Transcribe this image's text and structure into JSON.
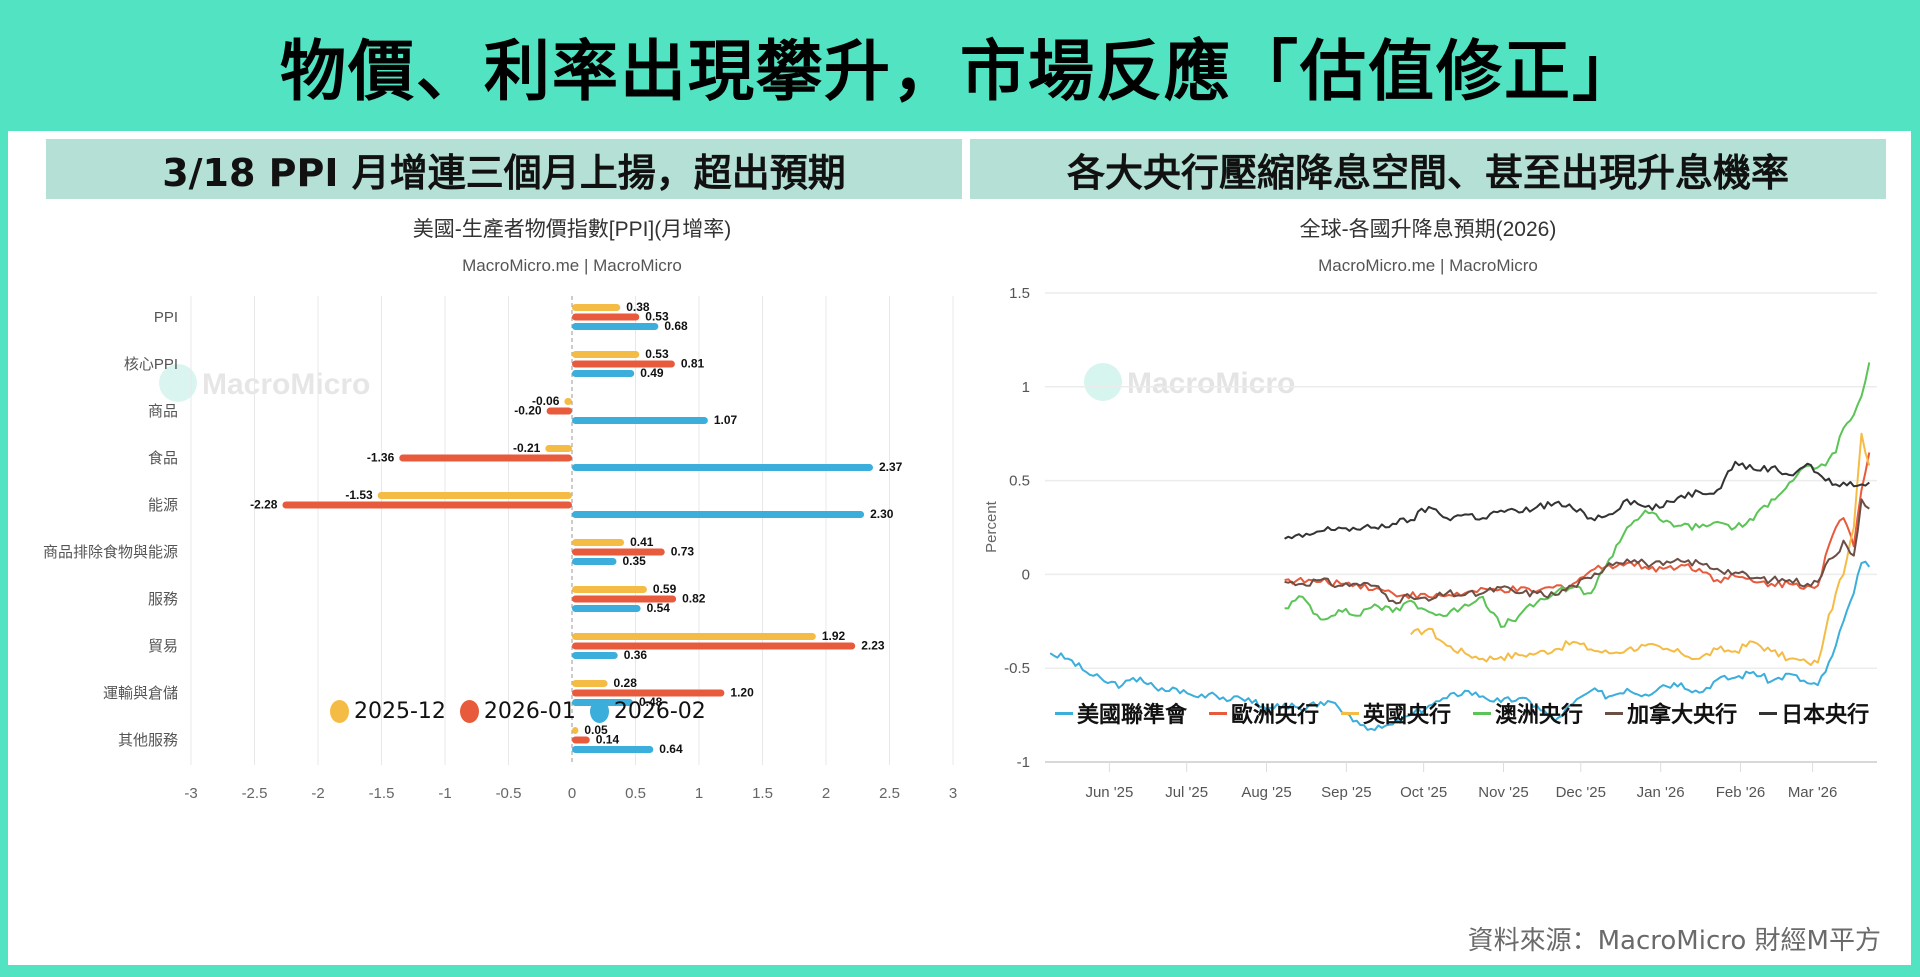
{
  "headline": "物價、利率出現攀升，市場反應「估值修正」",
  "source": "資料來源：MacroMicro 財經M平方",
  "left_panel": {
    "band_title": "3/18 PPI 月增連三個月上揚，超出預期"
  },
  "right_panel": {
    "band_title": "各大央行壓縮降息空間、甚至出現升息機率"
  },
  "watermark": "MacroMicro",
  "colors": {
    "teal": "#52E3C2",
    "band": "#B5E0D5"
  },
  "chart_data": [
    {
      "type": "bar",
      "orientation": "horizontal",
      "title": "美國-生產者物價指數[PPI](月增率)",
      "subtitle": "MacroMicro.me | MacroMicro",
      "categories": [
        "PPI",
        "核心PPI",
        "商品",
        "食品",
        "能源",
        "商品排除食物與能源",
        "服務",
        "貿易",
        "運輸與倉儲",
        "其他服務"
      ],
      "series": [
        {
          "name": "2025-12",
          "color": "#F5BC45",
          "values": [
            0.38,
            0.53,
            -0.06,
            -0.21,
            -1.53,
            0.41,
            0.59,
            1.92,
            0.28,
            0.05
          ]
        },
        {
          "name": "2026-01",
          "color": "#E85A3C",
          "values": [
            0.53,
            0.81,
            -0.2,
            -1.36,
            -2.28,
            0.73,
            0.82,
            2.23,
            1.2,
            0.14
          ]
        },
        {
          "name": "2026-02",
          "color": "#3BAEDB",
          "values": [
            0.68,
            0.49,
            1.07,
            2.37,
            2.3,
            0.35,
            0.54,
            0.36,
            0.48,
            0.64
          ]
        }
      ],
      "xlim": [
        -3,
        3
      ],
      "xticks": [
        "-3",
        "-2.5",
        "-2",
        "-1.5",
        "-1",
        "-0.5",
        "0",
        "0.5",
        "1",
        "1.5",
        "2",
        "2.5",
        "3"
      ],
      "xtick_values": [
        -3,
        -2.5,
        -2,
        -1.5,
        -1,
        -0.5,
        0,
        0.5,
        1,
        1.5,
        2,
        2.5,
        3
      ],
      "grid": true,
      "legend": "bottom"
    },
    {
      "type": "line",
      "title": "全球-各國升降息預期(2026)",
      "subtitle": "MacroMicro.me | MacroMicro",
      "ylabel": "Percent",
      "ylim": [
        -1,
        1.5
      ],
      "yticks": [
        "1.5",
        "1",
        "0.5",
        "0",
        "-0.5",
        "-1"
      ],
      "ytick_values": [
        1.5,
        1,
        0.5,
        0,
        -0.5,
        -1
      ],
      "xticks": [
        "Jun '25",
        "Jul '25",
        "Aug '25",
        "Sep '25",
        "Oct '25",
        "Nov '25",
        "Dec '25",
        "Jan '26",
        "Feb '26",
        "Mar '26"
      ],
      "xtick_dates": [
        "2025-06-01",
        "2025-07-01",
        "2025-08-01",
        "2025-09-01",
        "2025-10-01",
        "2025-11-01",
        "2025-12-01",
        "2026-01-01",
        "2026-02-01",
        "2026-03-01"
      ],
      "xlim": [
        "2025-05-07",
        "2026-03-26"
      ],
      "grid": true,
      "legend": "bottom",
      "series": [
        {
          "name": "美國聯準會",
          "color": "#3BAEDB",
          "x": [
            "2025-05-09",
            "2025-05-16",
            "2025-05-23",
            "2025-05-30",
            "2025-06-06",
            "2025-06-13",
            "2025-06-20",
            "2025-06-27",
            "2025-07-04",
            "2025-07-11",
            "2025-07-18",
            "2025-07-25",
            "2025-08-01",
            "2025-08-08",
            "2025-08-15",
            "2025-08-22",
            "2025-08-29",
            "2025-09-05",
            "2025-09-12",
            "2025-09-19",
            "2025-09-26",
            "2025-10-03",
            "2025-10-10",
            "2025-10-17",
            "2025-10-24",
            "2025-10-31",
            "2025-11-07",
            "2025-11-14",
            "2025-11-21",
            "2025-11-28",
            "2025-12-05",
            "2025-12-12",
            "2025-12-19",
            "2025-12-26",
            "2026-01-02",
            "2026-01-09",
            "2026-01-16",
            "2026-01-23",
            "2026-01-30",
            "2026-02-06",
            "2026-02-13",
            "2026-02-20",
            "2026-02-27",
            "2026-03-03",
            "2026-03-06",
            "2026-03-10",
            "2026-03-13",
            "2026-03-17",
            "2026-03-20",
            "2026-03-23"
          ],
          "y": [
            -0.42,
            -0.45,
            -0.52,
            -0.57,
            -0.59,
            -0.55,
            -0.62,
            -0.61,
            -0.65,
            -0.63,
            -0.67,
            -0.66,
            -0.72,
            -0.69,
            -0.73,
            -0.68,
            -0.71,
            -0.78,
            -0.83,
            -0.8,
            -0.75,
            -0.7,
            -0.66,
            -0.62,
            -0.65,
            -0.68,
            -0.66,
            -0.7,
            -0.78,
            -0.69,
            -0.62,
            -0.65,
            -0.61,
            -0.64,
            -0.59,
            -0.58,
            -0.63,
            -0.56,
            -0.55,
            -0.52,
            -0.57,
            -0.53,
            -0.58,
            -0.59,
            -0.52,
            -0.38,
            -0.25,
            -0.1,
            0.06,
            0.04
          ]
        },
        {
          "name": "歐洲央行",
          "color": "#E85A3C",
          "x": [
            "2025-08-08",
            "2025-08-22",
            "2025-09-05",
            "2025-09-19",
            "2025-10-03",
            "2025-10-17",
            "2025-10-31",
            "2025-11-14",
            "2025-11-28",
            "2025-12-05",
            "2025-12-12",
            "2025-12-19",
            "2025-12-26",
            "2026-01-02",
            "2026-01-09",
            "2026-01-16",
            "2026-01-23",
            "2026-01-30",
            "2026-02-06",
            "2026-02-13",
            "2026-02-20",
            "2026-02-27",
            "2026-03-03",
            "2026-03-06",
            "2026-03-10",
            "2026-03-13",
            "2026-03-17",
            "2026-03-20",
            "2026-03-23"
          ],
          "y": [
            -0.03,
            -0.04,
            -0.05,
            -0.1,
            -0.12,
            -0.1,
            -0.08,
            -0.09,
            -0.05,
            0.02,
            0.05,
            0.06,
            0.04,
            0.03,
            0.05,
            0.03,
            -0.03,
            -0.01,
            -0.04,
            -0.05,
            -0.05,
            -0.06,
            -0.06,
            0.1,
            0.25,
            0.3,
            0.15,
            0.45,
            0.65
          ]
        },
        {
          "name": "英國央行",
          "color": "#F5BC45",
          "x": [
            "2025-09-26",
            "2025-10-03",
            "2025-10-10",
            "2025-10-17",
            "2025-10-24",
            "2025-10-31",
            "2025-11-07",
            "2025-11-14",
            "2025-11-21",
            "2025-11-28",
            "2025-12-05",
            "2025-12-12",
            "2025-12-19",
            "2025-12-26",
            "2026-01-02",
            "2026-01-09",
            "2026-01-16",
            "2026-01-23",
            "2026-01-30",
            "2026-02-06",
            "2026-02-13",
            "2026-02-20",
            "2026-02-27",
            "2026-03-03",
            "2026-03-06",
            "2026-03-10",
            "2026-03-13",
            "2026-03-17",
            "2026-03-20",
            "2026-03-23"
          ],
          "y": [
            -0.32,
            -0.29,
            -0.38,
            -0.42,
            -0.45,
            -0.44,
            -0.43,
            -0.42,
            -0.4,
            -0.36,
            -0.4,
            -0.42,
            -0.4,
            -0.38,
            -0.4,
            -0.42,
            -0.45,
            -0.4,
            -0.41,
            -0.36,
            -0.41,
            -0.45,
            -0.47,
            -0.47,
            -0.3,
            -0.1,
            0.0,
            0.25,
            0.75,
            0.58
          ]
        },
        {
          "name": "澳洲央行",
          "color": "#5BC456",
          "x": [
            "2025-08-08",
            "2025-08-15",
            "2025-08-22",
            "2025-08-29",
            "2025-09-05",
            "2025-09-12",
            "2025-09-19",
            "2025-09-26",
            "2025-10-03",
            "2025-10-10",
            "2025-10-17",
            "2025-10-24",
            "2025-10-31",
            "2025-11-07",
            "2025-11-14",
            "2025-11-21",
            "2025-11-28",
            "2025-12-05",
            "2025-12-12",
            "2025-12-19",
            "2025-12-26",
            "2026-01-02",
            "2026-01-09",
            "2026-01-16",
            "2026-01-23",
            "2026-01-30",
            "2026-02-06",
            "2026-02-13",
            "2026-02-20",
            "2026-02-27",
            "2026-03-03",
            "2026-03-06",
            "2026-03-10",
            "2026-03-13",
            "2026-03-17",
            "2026-03-20",
            "2026-03-23"
          ],
          "y": [
            -0.18,
            -0.12,
            -0.24,
            -0.19,
            -0.22,
            -0.16,
            -0.2,
            -0.14,
            -0.2,
            -0.22,
            -0.16,
            -0.12,
            -0.28,
            -0.22,
            -0.15,
            -0.1,
            -0.07,
            -0.1,
            0.08,
            0.25,
            0.34,
            0.28,
            0.26,
            0.25,
            0.28,
            0.25,
            0.29,
            0.4,
            0.49,
            0.58,
            0.57,
            0.58,
            0.65,
            0.78,
            0.85,
            0.95,
            1.13
          ]
        },
        {
          "name": "加拿大央行",
          "color": "#6B4E44",
          "x": [
            "2025-08-08",
            "2025-08-15",
            "2025-08-22",
            "2025-08-29",
            "2025-09-05",
            "2025-09-12",
            "2025-09-19",
            "2025-09-26",
            "2025-10-03",
            "2025-10-10",
            "2025-10-17",
            "2025-10-24",
            "2025-10-31",
            "2025-11-07",
            "2025-11-14",
            "2025-11-21",
            "2025-11-28",
            "2025-12-05",
            "2025-12-12",
            "2025-12-19",
            "2025-12-26",
            "2026-01-02",
            "2026-01-09",
            "2026-01-16",
            "2026-01-23",
            "2026-01-30",
            "2026-02-06",
            "2026-02-13",
            "2026-02-20",
            "2026-02-27",
            "2026-03-03",
            "2026-03-06",
            "2026-03-10",
            "2026-03-13",
            "2026-03-17",
            "2026-03-20",
            "2026-03-23"
          ],
          "y": [
            -0.04,
            -0.05,
            -0.03,
            -0.06,
            -0.05,
            -0.06,
            -0.14,
            -0.12,
            -0.14,
            -0.1,
            -0.11,
            -0.1,
            -0.07,
            -0.1,
            -0.1,
            -0.11,
            -0.06,
            -0.02,
            0.06,
            0.08,
            0.06,
            0.05,
            0.07,
            0.06,
            0.03,
            0.01,
            -0.02,
            -0.03,
            -0.03,
            -0.05,
            -0.04,
            0.05,
            0.1,
            0.18,
            0.1,
            0.4,
            0.35
          ]
        },
        {
          "name": "日本央行",
          "color": "#333333",
          "x": [
            "2025-08-08",
            "2025-08-15",
            "2025-08-22",
            "2025-08-29",
            "2025-09-05",
            "2025-09-12",
            "2025-09-19",
            "2025-09-26",
            "2025-10-03",
            "2025-10-10",
            "2025-10-17",
            "2025-10-24",
            "2025-10-31",
            "2025-11-07",
            "2025-11-14",
            "2025-11-21",
            "2025-11-28",
            "2025-12-05",
            "2025-12-12",
            "2025-12-19",
            "2025-12-26",
            "2026-01-02",
            "2026-01-09",
            "2026-01-16",
            "2026-01-23",
            "2026-01-30",
            "2026-02-06",
            "2026-02-13",
            "2026-02-20",
            "2026-02-27",
            "2026-03-03",
            "2026-03-06",
            "2026-03-10",
            "2026-03-13",
            "2026-03-17",
            "2026-03-20",
            "2026-03-23"
          ],
          "y": [
            0.19,
            0.2,
            0.23,
            0.25,
            0.24,
            0.25,
            0.27,
            0.29,
            0.36,
            0.3,
            0.32,
            0.3,
            0.34,
            0.33,
            0.36,
            0.38,
            0.35,
            0.3,
            0.32,
            0.4,
            0.36,
            0.36,
            0.42,
            0.44,
            0.45,
            0.6,
            0.56,
            0.57,
            0.53,
            0.59,
            0.54,
            0.5,
            0.48,
            0.49,
            0.47,
            0.48,
            0.49
          ]
        }
      ]
    }
  ]
}
